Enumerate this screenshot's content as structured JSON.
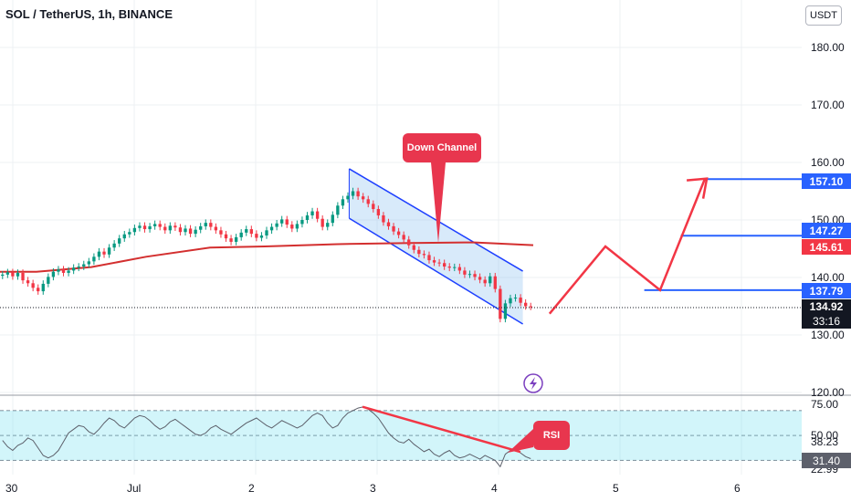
{
  "header": {
    "title": "SOL / TetherUS, 1h, BINANCE",
    "currency": "USDT"
  },
  "colors": {
    "up": "#089981",
    "down": "#f23645",
    "ma": "#d32f2f",
    "channel": "#1e40ff",
    "level": "#2962ff",
    "forecast": "#f23645",
    "rsi_line": "#5d606b",
    "rsi_band": "#7ee3f0"
  },
  "annotations": {
    "down_channel": "Down Channel",
    "rsi": "RSI",
    "flash_icon": "lightning-icon"
  },
  "chart_data": [
    {
      "type": "candlestick",
      "title": "SOL / TetherUS, 1h, BINANCE",
      "x_ticks": [
        "30",
        "Jul",
        "2",
        "3",
        "4",
        "5",
        "6"
      ],
      "y_ticks": [
        "180.00",
        "170.00",
        "160.00",
        "150.00",
        "140.00",
        "130.00",
        "120.00"
      ],
      "ylim": [
        120,
        187
      ],
      "price_labels": {
        "level_157": "157.10",
        "level_147": "147.27",
        "ma": "145.61",
        "level_137": "137.79",
        "last": "134.92",
        "countdown": "33:16"
      },
      "closes": [
        140.5,
        140.9,
        140.2,
        140.8,
        139.5,
        139.0,
        138.2,
        137.6,
        138.9,
        140.1,
        141.0,
        141.4,
        140.8,
        141.2,
        141.7,
        141.9,
        142.3,
        142.8,
        143.6,
        144.5,
        144.0,
        145.2,
        145.9,
        146.8,
        147.5,
        147.9,
        148.6,
        149.0,
        148.4,
        148.9,
        149.3,
        148.8,
        148.2,
        149.0,
        148.7,
        147.9,
        148.5,
        147.6,
        148.3,
        148.9,
        149.5,
        148.8,
        148.2,
        147.5,
        146.8,
        146.2,
        147.0,
        147.8,
        148.4,
        147.6,
        146.9,
        147.3,
        148.2,
        148.8,
        149.4,
        150.1,
        149.2,
        148.5,
        149.3,
        150.0,
        150.8,
        151.5,
        150.2,
        148.8,
        149.5,
        150.9,
        152.5,
        153.6,
        154.2,
        155.0,
        154.1,
        153.6,
        152.8,
        151.9,
        150.8,
        149.6,
        148.9,
        148.0,
        147.4,
        146.6,
        145.6,
        144.8,
        144.1,
        143.9,
        143.0,
        142.6,
        142.5,
        141.9,
        141.7,
        141.8,
        141.2,
        140.5,
        140.6,
        140.1,
        139.6,
        139.0,
        140.2,
        138.0,
        132.8,
        135.5,
        136.4,
        136.5,
        135.6,
        135.0,
        134.92
      ],
      "ma": [
        [
          0,
          141.0
        ],
        [
          40,
          141.0
        ],
        [
          100,
          141.8
        ],
        [
          160,
          143.6
        ],
        [
          230,
          145.2
        ],
        [
          290,
          145.4
        ],
        [
          370,
          145.8
        ],
        [
          450,
          146.0
        ],
        [
          520,
          146.1
        ],
        [
          584,
          145.61
        ]
      ],
      "channel": {
        "upper": [
          [
            2.77,
            158.9
          ],
          [
            4.2,
            141.1
          ]
        ],
        "lower": [
          [
            2.77,
            150.3
          ],
          [
            4.2,
            131.9
          ]
        ]
      },
      "forecast": [
        [
          4.42,
          133.7
        ],
        [
          4.88,
          145.4
        ],
        [
          5.33,
          137.8
        ],
        [
          5.7,
          157.2
        ]
      ],
      "levels": [
        {
          "label": "157.10",
          "value": 157.1,
          "from": "5.7"
        },
        {
          "label": "147.27",
          "value": 147.27,
          "from": "5.5"
        },
        {
          "label": "137.79",
          "value": 137.79,
          "from": "5.2"
        }
      ]
    },
    {
      "type": "line",
      "name": "RSI",
      "y_ticks": [
        "75.00",
        "50.00",
        "38.23",
        "31.40",
        "22.99"
      ],
      "ylim": [
        22,
        78
      ],
      "levels": [
        70,
        50,
        30
      ],
      "values": [
        46,
        41,
        38,
        42,
        44,
        48,
        46,
        40,
        34,
        32,
        34,
        38,
        45,
        52,
        55,
        58,
        57,
        53,
        51,
        55,
        60,
        64,
        62,
        58,
        56,
        60,
        64,
        66,
        65,
        62,
        58,
        55,
        57,
        61,
        63,
        60,
        57,
        54,
        51,
        50,
        52,
        56,
        58,
        55,
        53,
        51,
        54,
        57,
        60,
        62,
        64,
        61,
        58,
        56,
        59,
        62,
        60,
        58,
        56,
        58,
        62,
        66,
        68,
        66,
        60,
        56,
        58,
        64,
        68,
        70,
        72,
        73,
        71,
        68,
        64,
        58,
        52,
        48,
        45,
        44,
        47,
        43,
        40,
        37,
        39,
        35,
        33,
        36,
        38,
        34,
        32,
        33,
        35,
        33,
        31,
        34,
        32,
        30,
        25,
        35,
        38,
        40,
        36,
        33,
        31.4
      ],
      "divergence": [
        [
          2.88,
          73.0
        ],
        [
          4.18,
          36.8
        ]
      ]
    }
  ]
}
